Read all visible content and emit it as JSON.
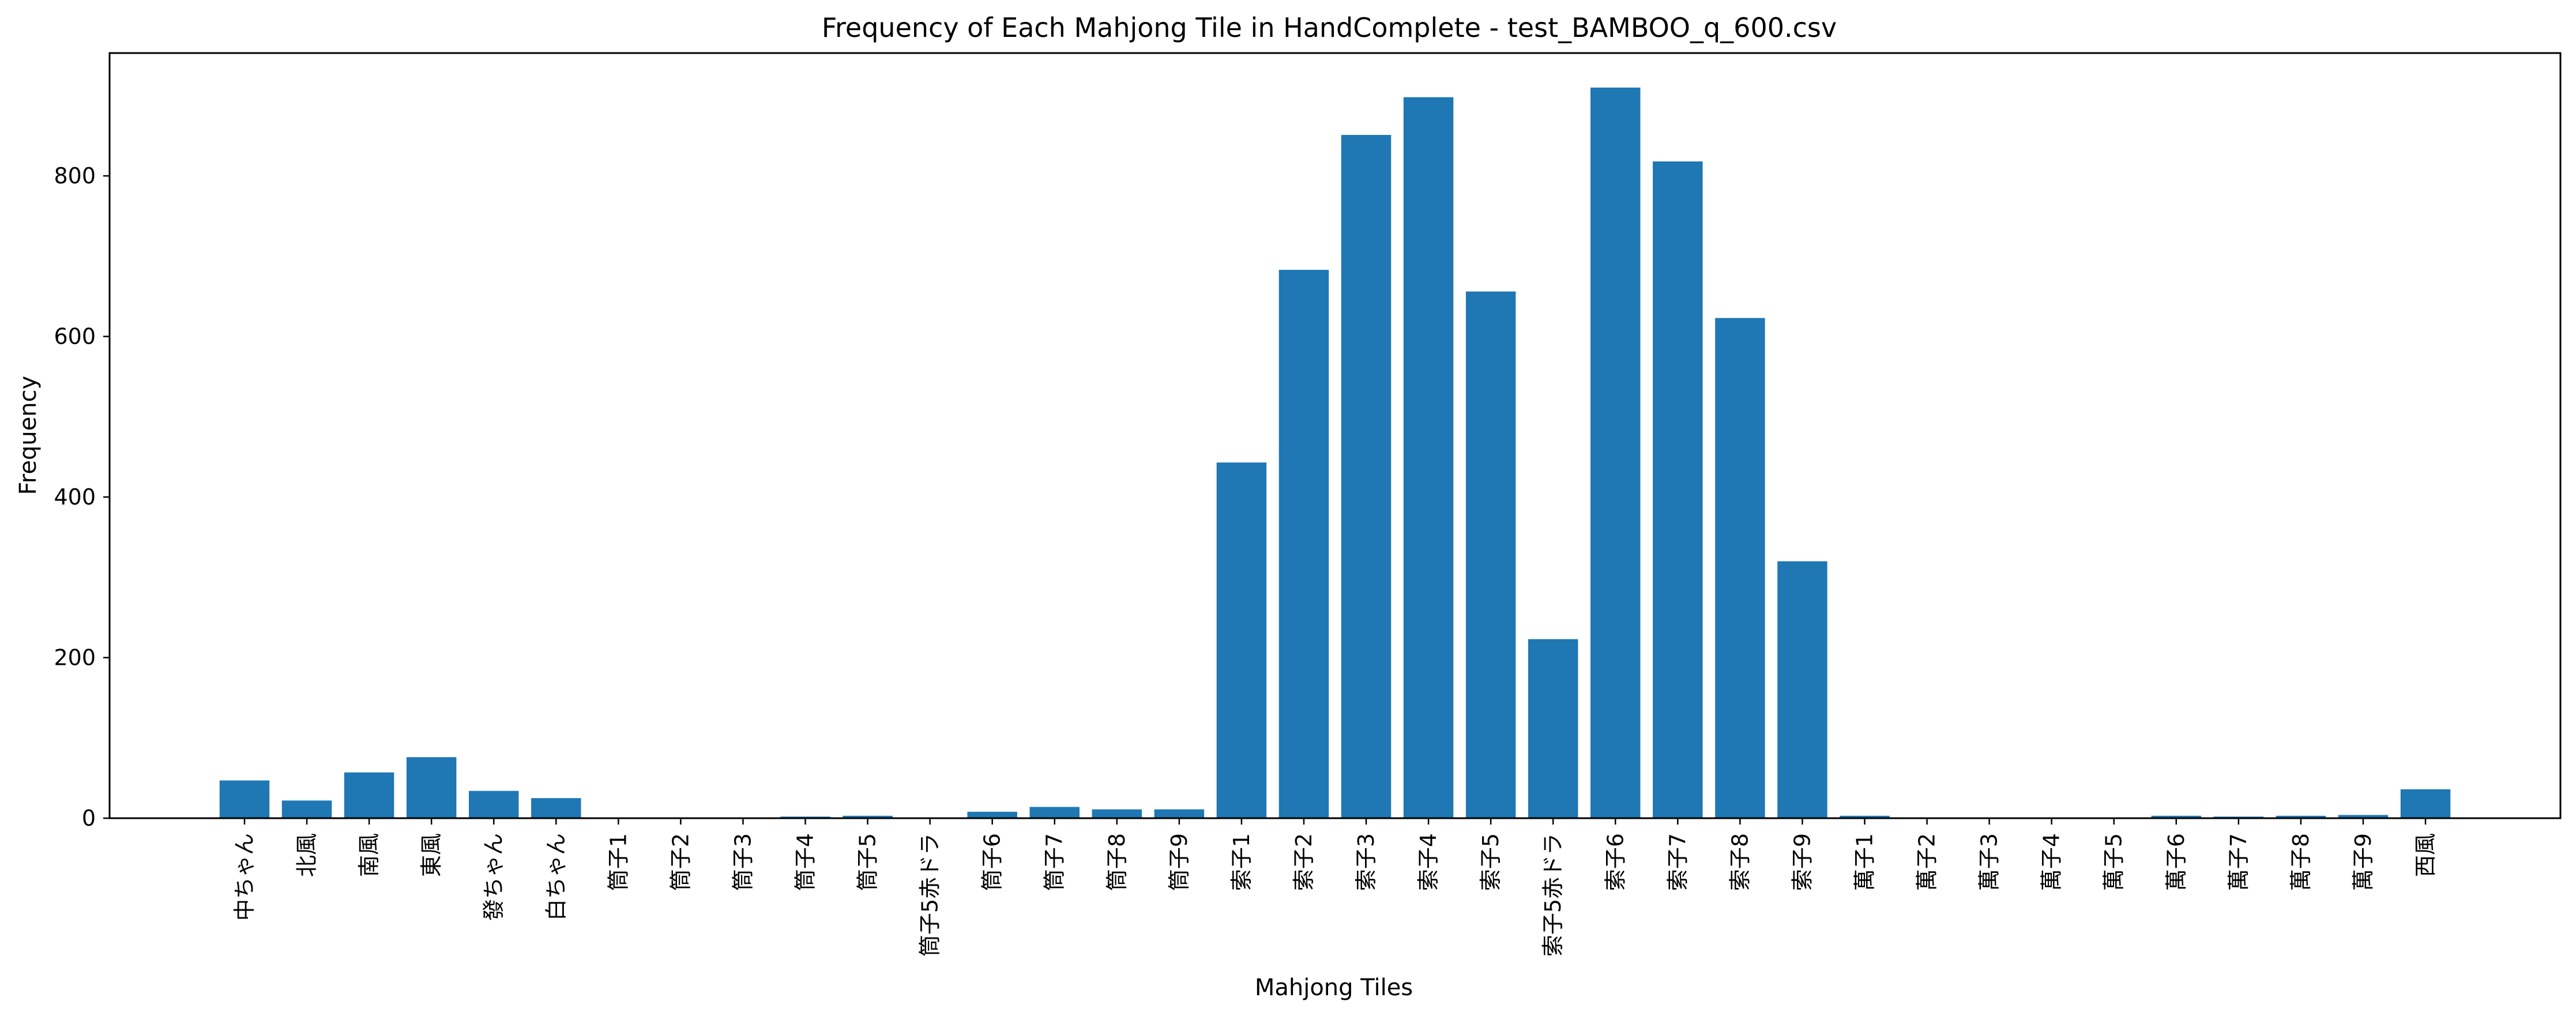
{
  "chart_data": {
    "type": "bar",
    "title": "Frequency of Each Mahjong Tile in HandComplete - test_BAMBOO_q_600.csv",
    "xlabel": "Mahjong Tiles",
    "ylabel": "Frequency",
    "categories": [
      "中ちゃん",
      "北風",
      "南風",
      "東風",
      "發ちゃん",
      "白ちゃん",
      "筒子1",
      "筒子2",
      "筒子3",
      "筒子4",
      "筒子5",
      "筒子5赤ドラ",
      "筒子6",
      "筒子7",
      "筒子8",
      "筒子9",
      "索子1",
      "索子2",
      "索子3",
      "索子4",
      "索子5",
      "索子5赤ドラ",
      "索子6",
      "索子7",
      "索子8",
      "索子9",
      "萬子1",
      "萬子2",
      "萬子3",
      "萬子4",
      "萬子5",
      "萬子6",
      "萬子7",
      "萬子8",
      "萬子9",
      "西風"
    ],
    "values": [
      47,
      22,
      57,
      76,
      34,
      25,
      0,
      0,
      0,
      2,
      3,
      0,
      8,
      14,
      11,
      11,
      443,
      683,
      851,
      898,
      656,
      223,
      910,
      818,
      623,
      320,
      3,
      0,
      1,
      0,
      1,
      3,
      2,
      3,
      4,
      36
    ],
    "ylim": [
      0,
      953
    ],
    "yticks": [
      0,
      200,
      400,
      600,
      800
    ],
    "grid": false,
    "bar_color": "#1f77b4"
  }
}
